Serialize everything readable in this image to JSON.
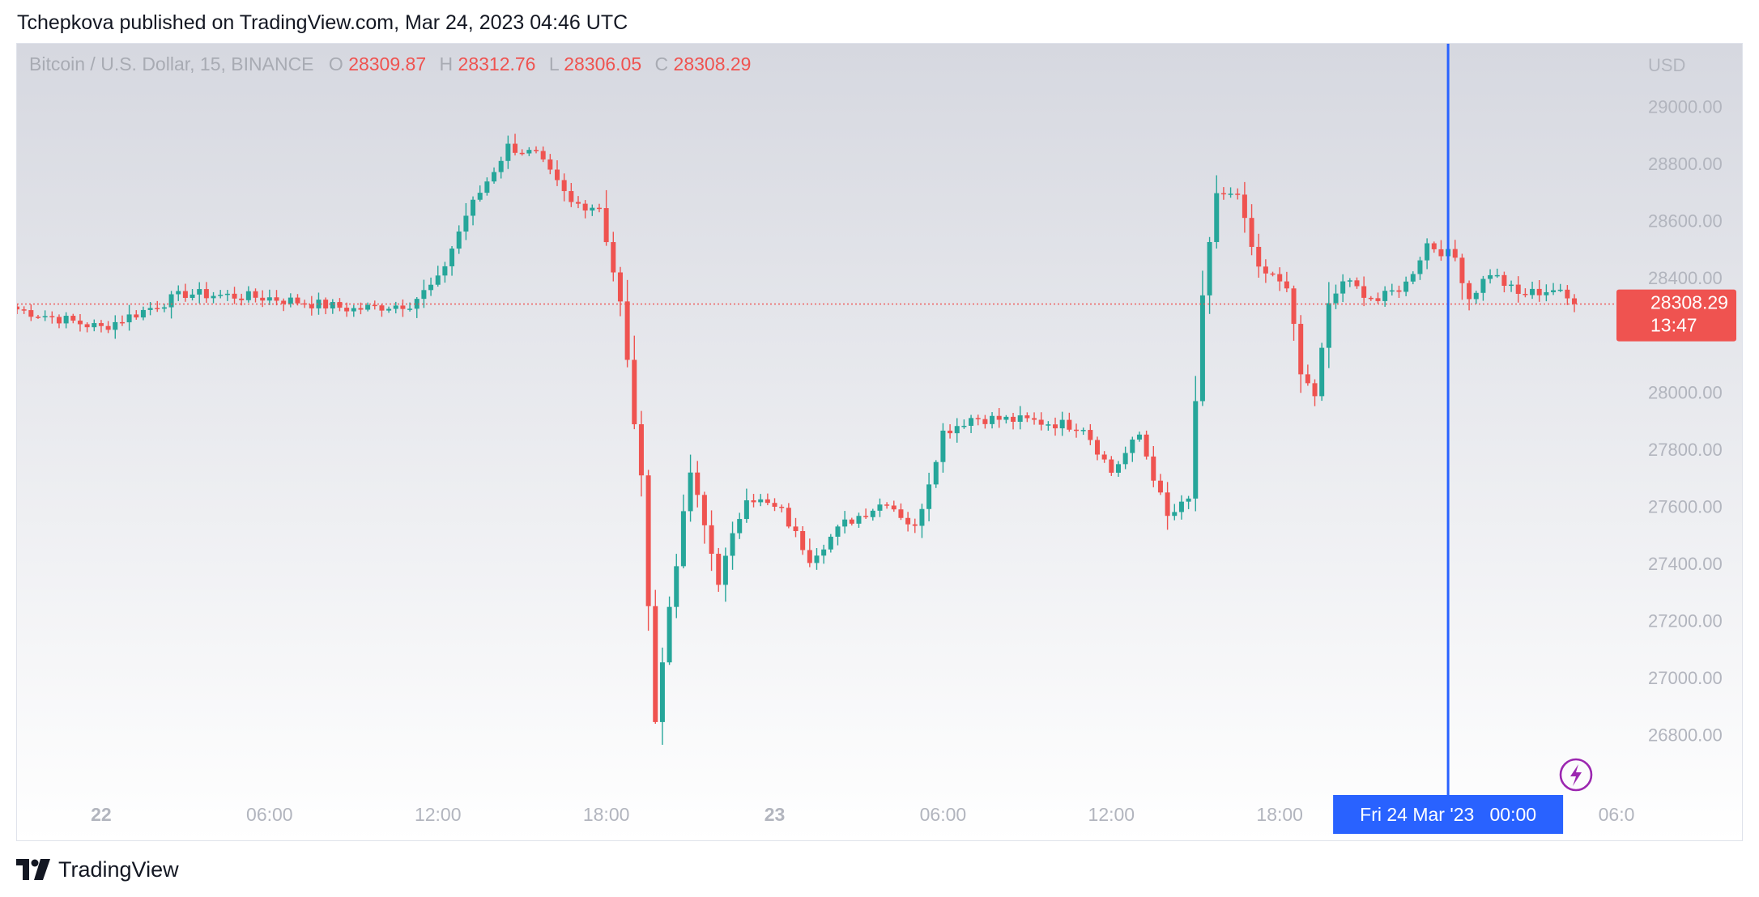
{
  "header": {
    "publisher_line": "Tchepkova published on TradingView.com, Mar 24, 2023 04:46 UTC"
  },
  "legend": {
    "symbol": "Bitcoin / U.S. Dollar, 15, BINANCE",
    "o_label": "O",
    "o_value": "28309.87",
    "h_label": "H",
    "h_value": "28312.76",
    "l_label": "L",
    "l_value": "28306.05",
    "c_label": "C",
    "c_value": "28308.29"
  },
  "price_axis": {
    "currency": "USD",
    "ticks": [
      "29000.00",
      "28800.00",
      "28600.00",
      "28400.00",
      "28000.00",
      "27800.00",
      "27600.00",
      "27400.00",
      "27200.00",
      "27000.00",
      "26800.00"
    ],
    "last_price": "28308.29",
    "countdown": "13:47"
  },
  "time_axis": {
    "ticks": [
      "22",
      "06:00",
      "12:00",
      "18:00",
      "23",
      "06:00",
      "12:00",
      "18:00",
      "06:0"
    ],
    "crosshair_label": "Fri 24 Mar '23   00:00"
  },
  "footer": {
    "brand": "TradingView"
  },
  "colors": {
    "up": "#26a69a",
    "down": "#ef5350",
    "crosshair": "#2962ff",
    "price_line": "#ef5350"
  },
  "chart_data": {
    "type": "candlestick",
    "title": "Bitcoin / U.S. Dollar, 15, BINANCE",
    "ylabel": "USD",
    "ylim": [
      26640,
      29220
    ],
    "xlim": [
      "2023-03-21 21:00",
      "2023-03-24 06:00"
    ],
    "interval_minutes": 15,
    "last_price": 28308.29,
    "anchors": [
      [
        "2023-03-21 21:00",
        28290
      ],
      [
        "2023-03-22 00:00",
        28225
      ],
      [
        "2023-03-22 03:00",
        28345
      ],
      [
        "2023-03-22 06:00",
        28330
      ],
      [
        "2023-03-22 09:00",
        28290
      ],
      [
        "2023-03-22 11:00",
        28310
      ],
      [
        "2023-03-22 12:00",
        28390
      ],
      [
        "2023-03-22 13:00",
        28620
      ],
      [
        "2023-03-22 14:30",
        28860
      ],
      [
        "2023-03-22 15:30",
        28830
      ],
      [
        "2023-03-22 16:45",
        28660
      ],
      [
        "2023-03-22 17:45",
        28650
      ],
      [
        "2023-03-22 18:30",
        28310
      ],
      [
        "2023-03-22 19:15",
        27690
      ],
      [
        "2023-03-22 19:45",
        26850
      ],
      [
        "2023-03-22 20:15",
        27250
      ],
      [
        "2023-03-22 21:00",
        27720
      ],
      [
        "2023-03-22 22:00",
        27340
      ],
      [
        "2023-03-22 23:00",
        27640
      ],
      [
        "2023-03-23 00:15",
        27580
      ],
      [
        "2023-03-23 01:15",
        27420
      ],
      [
        "2023-03-23 02:30",
        27540
      ],
      [
        "2023-03-23 04:00",
        27620
      ],
      [
        "2023-03-23 05:00",
        27520
      ],
      [
        "2023-03-23 06:00",
        27860
      ],
      [
        "2023-03-23 07:00",
        27910
      ],
      [
        "2023-03-23 09:00",
        27900
      ],
      [
        "2023-03-23 11:00",
        27880
      ],
      [
        "2023-03-23 12:00",
        27720
      ],
      [
        "2023-03-23 13:00",
        27850
      ],
      [
        "2023-03-23 14:00",
        27560
      ],
      [
        "2023-03-23 14:45",
        27620
      ],
      [
        "2023-03-23 15:15",
        28320
      ],
      [
        "2023-03-23 15:45",
        28700
      ],
      [
        "2023-03-23 16:30",
        28680
      ],
      [
        "2023-03-23 17:15",
        28420
      ],
      [
        "2023-03-23 18:15",
        28380
      ],
      [
        "2023-03-23 18:45",
        28060
      ],
      [
        "2023-03-23 19:15",
        27990
      ],
      [
        "2023-03-23 19:45",
        28300
      ],
      [
        "2023-03-23 20:15",
        28390
      ],
      [
        "2023-03-23 21:30",
        28320
      ],
      [
        "2023-03-23 22:30",
        28380
      ],
      [
        "2023-03-23 23:15",
        28520
      ],
      [
        "2023-03-24 00:15",
        28470
      ],
      [
        "2023-03-24 00:45",
        28330
      ],
      [
        "2023-03-24 01:30",
        28420
      ],
      [
        "2023-03-24 02:30",
        28340
      ],
      [
        "2023-03-24 03:45",
        28360
      ],
      [
        "2023-03-24 04:30",
        28308.29
      ]
    ]
  }
}
